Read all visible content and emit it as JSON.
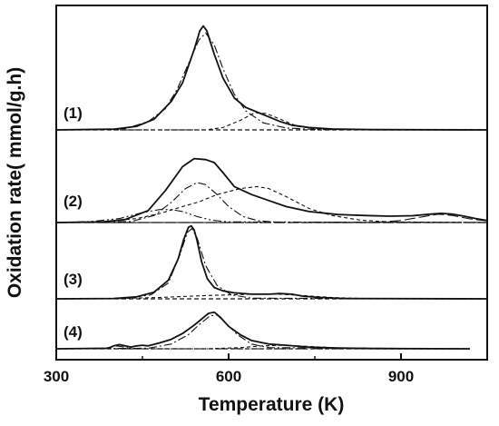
{
  "chart_data": {
    "type": "line",
    "title": "",
    "xlabel": "Temperature (K)",
    "ylabel": "Oxidation rate(   mmol/g.h)",
    "xlim": [
      300,
      1050
    ],
    "xticks": [
      300,
      600,
      900
    ],
    "yticks": "none",
    "grid": false,
    "legend": "none",
    "colors": {
      "line": "#111111",
      "axis": "#111111"
    },
    "panels": [
      {
        "label": "(1)",
        "baseline": 0,
        "measured": {
          "x": [
            300,
            400,
            440,
            470,
            500,
            520,
            540,
            550,
            556,
            562,
            575,
            590,
            610,
            630,
            650,
            670,
            690,
            710,
            740,
            780,
            850,
            1050
          ],
          "y": [
            0,
            0.3,
            1.5,
            4.5,
            12,
            20,
            34,
            42,
            44,
            42,
            32,
            22,
            13.5,
            9.5,
            7.5,
            5.5,
            3.5,
            2,
            1,
            0.4,
            0.1,
            0
          ]
        },
        "fitted_peaks": [
          {
            "x": [
              300,
              420,
              460,
              490,
              510,
              530,
              548,
              560,
              575,
              590,
              610,
              630,
              660,
              700,
              760,
              1050
            ],
            "y": [
              0,
              0.5,
              3.5,
              9,
              17,
              28,
              38,
              41,
              36,
              26,
              15,
              8,
              3,
              0.8,
              0.1,
              0
            ]
          },
          {
            "x": [
              300,
              560,
              590,
              620,
              645,
              665,
              690,
              720,
              760,
              1050
            ],
            "y": [
              0,
              0,
              1,
              4,
              7.2,
              7,
              4.5,
              1.5,
              0.2,
              0
            ]
          }
        ]
      },
      {
        "label": "(2)",
        "baseline": 0,
        "measured": {
          "x": [
            300,
            380,
            420,
            460,
            490,
            520,
            540,
            560,
            575,
            590,
            610,
            640,
            670,
            700,
            740,
            790,
            840,
            880,
            920,
            950,
            970,
            990,
            1010,
            1030,
            1050
          ],
          "y": [
            0,
            0.3,
            1.5,
            6,
            16,
            28,
            32,
            31.5,
            30,
            25,
            18,
            14,
            11,
            8,
            5.5,
            4,
            3.5,
            3.2,
            3.4,
            4.2,
            4.6,
            4.2,
            3.2,
            2,
            1
          ]
        },
        "fitted_peaks": [
          {
            "x": [
              300,
              430,
              470,
              500,
              525,
              545,
              560,
              580,
              600,
              625,
              650,
              680,
              1050
            ],
            "y": [
              0,
              0.5,
              3.5,
              10,
              17,
              20,
              19,
              14,
              8,
              3,
              1,
              0.2,
              0
            ]
          },
          {
            "x": [
              300,
              380,
              440,
              480,
              520,
              550,
              580,
              620,
              650,
              670,
              700,
              740,
              780,
              830,
              880,
              1050
            ],
            "y": [
              0,
              0.3,
              2,
              4.5,
              8,
              10.5,
              14,
              17,
              18,
              17,
              13,
              7,
              3.5,
              1.2,
              0.3,
              0
            ]
          },
          {
            "x": [
              300,
              360,
              410,
              450,
              480,
              500,
              520,
              545,
              570,
              600,
              1050
            ],
            "y": [
              0,
              0.5,
              2,
              5,
              6.5,
              6.5,
              5.5,
              3,
              1.2,
              0.3,
              0
            ]
          },
          {
            "x": [
              300,
              850,
              900,
              940,
              965,
              990,
              1020,
              1050
            ],
            "y": [
              0,
              0,
              1,
              3,
              4.2,
              3.5,
              1.8,
              0.8
            ]
          }
        ]
      },
      {
        "label": "(3)",
        "baseline": 0,
        "measured": {
          "x": [
            300,
            400,
            440,
            470,
            495,
            512,
            522,
            530,
            535,
            540,
            545,
            553,
            563,
            575,
            590,
            610,
            640,
            670,
            690,
            710,
            730,
            760,
            800,
            1050
          ],
          "y": [
            0,
            0.3,
            1.5,
            5,
            14,
            30,
            45,
            54,
            55,
            52,
            44,
            28,
            15,
            8.5,
            6,
            4.5,
            3.5,
            3.5,
            4,
            3.5,
            2,
            1,
            0.3,
            0
          ]
        },
        "fitted_peaks": [
          {
            "x": [
              300,
              420,
              465,
              495,
              515,
              528,
              536,
              545,
              560,
              580,
              605,
              640,
              1050
            ],
            "y": [
              0,
              0.3,
              3,
              12,
              33,
              50,
              53,
              46,
              25,
              10,
              3,
              0.5,
              0
            ]
          },
          {
            "x": [
              300,
              400,
              480,
              560,
              640,
              690,
              730,
              780,
              830,
              1050
            ],
            "y": [
              0,
              0.2,
              1,
              2.5,
              3.5,
              3.5,
              2.5,
              1,
              0.3,
              0
            ]
          }
        ]
      },
      {
        "label": "(4)",
        "baseline": 0,
        "measured": {
          "x": [
            300,
            390,
            400,
            410,
            420,
            430,
            440,
            450,
            460,
            480,
            500,
            520,
            540,
            555,
            565,
            575,
            585,
            600,
            620,
            640,
            670,
            700,
            740,
            790,
            850,
            1020
          ],
          "y": [
            0,
            0.5,
            2.5,
            3.5,
            2.5,
            1.5,
            2.5,
            3,
            2.5,
            5,
            8,
            13,
            20,
            26,
            30,
            31,
            27,
            19,
            12,
            7,
            4,
            3,
            1.5,
            0.6,
            0.2,
            0
          ]
        },
        "fitted_peaks": [
          {
            "x": [
              300,
              460,
              500,
              530,
              550,
              568,
              580,
              595,
              615,
              640,
              670,
              1020
            ],
            "y": [
              0,
              0.5,
              4,
              12,
              21,
              28,
              28.5,
              22,
              12,
              4,
              1,
              0
            ]
          },
          {
            "x": [
              300,
              560,
              620,
              660,
              690,
              720,
              760,
              800,
              1020
            ],
            "y": [
              0,
              0,
              1,
              2.5,
              3,
              2.5,
              1.5,
              0.5,
              0
            ]
          },
          {
            "x": [
              300,
              380,
              395,
              405,
              418,
              430,
              1020
            ],
            "y": [
              0,
              0,
              1.5,
              2.5,
              1.5,
              0,
              0
            ]
          }
        ]
      }
    ]
  }
}
